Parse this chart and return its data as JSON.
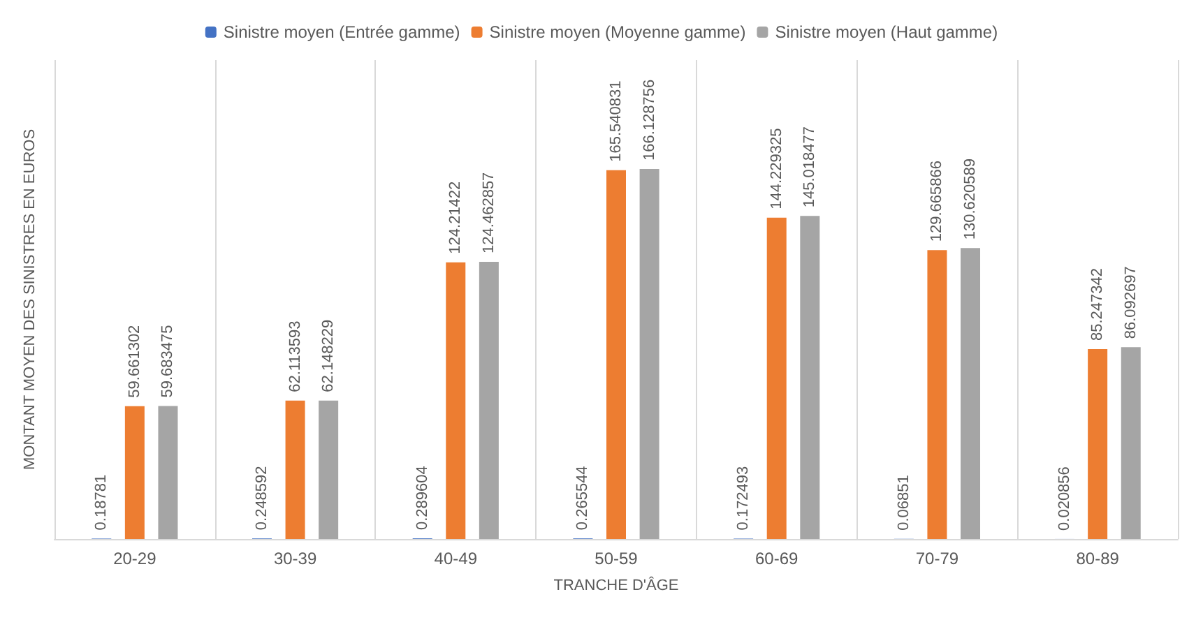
{
  "chart_data": {
    "type": "bar",
    "xlabel": "TRANCHE D'ÂGE",
    "ylabel": "MONTANT MOYEN DES SINISTRES EN EUROS",
    "categories": [
      "20-29",
      "30-39",
      "40-49",
      "50-59",
      "60-69",
      "70-79",
      "80-89"
    ],
    "series": [
      {
        "name": "Sinistre moyen (Entrée gamme)",
        "color": "#4472c4",
        "values": [
          0.18781,
          0.248592,
          0.289604,
          0.265544,
          0.172493,
          0.06851,
          0.020856
        ]
      },
      {
        "name": "Sinistre moyen (Moyenne gamme)",
        "color": "#ed7d31",
        "values": [
          59.661302,
          62.113593,
          124.21422,
          165.540831,
          144.229325,
          129.665866,
          85.247342
        ]
      },
      {
        "name": "Sinistre moyen (Haut gamme)",
        "color": "#a5a5a5",
        "values": [
          59.683475,
          62.148229,
          124.462857,
          166.128756,
          145.018477,
          130.620589,
          86.092697
        ]
      }
    ],
    "data_labels": true,
    "grid": "x",
    "legend": "top",
    "tick_labels": "x"
  }
}
